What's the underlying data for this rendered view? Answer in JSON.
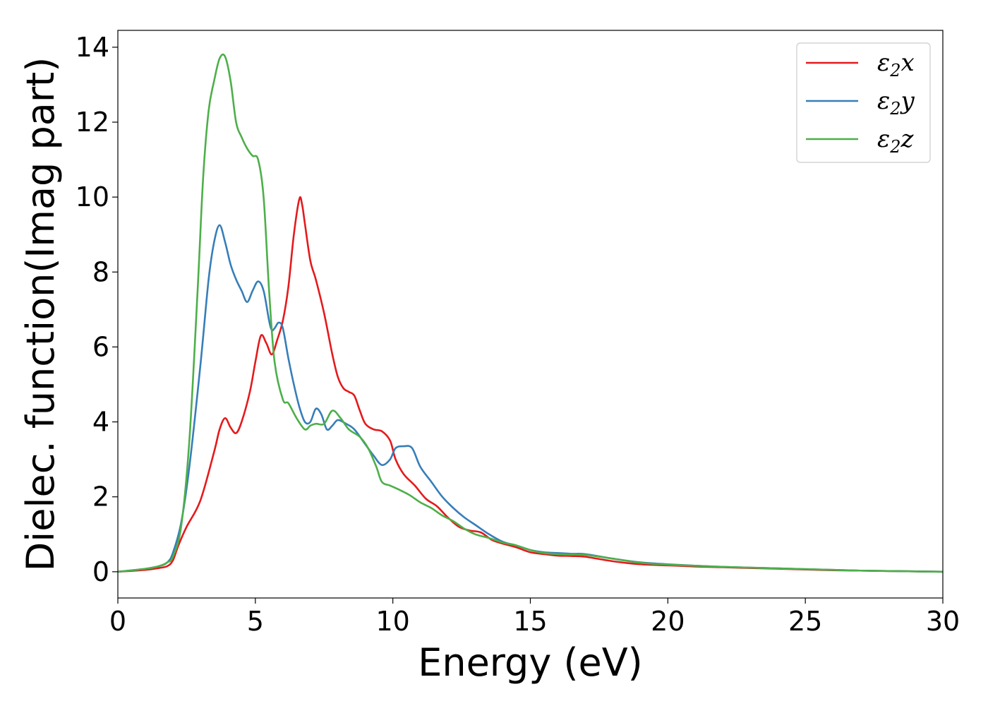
{
  "chart_data": {
    "type": "line",
    "xlabel": "Energy (eV)",
    "ylabel": "Dielec. function(Imag part)",
    "xlim": [
      0,
      30
    ],
    "ylim": [
      -0.7,
      14.45
    ],
    "xticks": [
      "0",
      "5",
      "10",
      "15",
      "20",
      "25",
      "30"
    ],
    "yticks": [
      "0",
      "2",
      "4",
      "6",
      "8",
      "10",
      "12",
      "14"
    ],
    "grid": false,
    "legend_position": "top-right",
    "series": [
      {
        "name": "ε2x",
        "legend": {
          "base": "ε",
          "sub": "2",
          "suffix": "x"
        },
        "color": "#e41a1c",
        "x": [
          0,
          1.0,
          1.5,
          1.8,
          2.0,
          2.2,
          2.5,
          3.0,
          3.5,
          3.7,
          3.9,
          4.1,
          4.3,
          4.5,
          4.8,
          5.0,
          5.2,
          5.4,
          5.6,
          5.8,
          6.0,
          6.2,
          6.4,
          6.6,
          6.7,
          6.8,
          7.0,
          7.2,
          7.5,
          7.8,
          8.0,
          8.2,
          8.4,
          8.6,
          8.8,
          9.0,
          9.3,
          9.6,
          9.9,
          10.1,
          10.4,
          10.8,
          11.2,
          11.6,
          12.0,
          12.4,
          12.8,
          13.2,
          13.6,
          14.0,
          14.5,
          15.0,
          15.5,
          16.0,
          16.5,
          17.0,
          18.0,
          19.0,
          20.0,
          21.0,
          22.0,
          23.0,
          24.0,
          25.0,
          26.0,
          27.0,
          28.0,
          29.0,
          30.0
        ],
        "y": [
          0,
          0.05,
          0.1,
          0.15,
          0.3,
          0.7,
          1.2,
          1.9,
          3.2,
          3.8,
          4.1,
          3.85,
          3.7,
          4.0,
          4.8,
          5.6,
          6.3,
          6.1,
          5.8,
          6.2,
          6.7,
          7.6,
          9.0,
          9.95,
          9.8,
          9.3,
          8.3,
          7.8,
          6.9,
          5.8,
          5.2,
          4.9,
          4.8,
          4.7,
          4.3,
          3.95,
          3.8,
          3.75,
          3.5,
          3.0,
          2.6,
          2.3,
          1.95,
          1.75,
          1.45,
          1.2,
          1.1,
          1.05,
          0.85,
          0.75,
          0.65,
          0.52,
          0.47,
          0.43,
          0.42,
          0.4,
          0.28,
          0.2,
          0.17,
          0.14,
          0.12,
          0.1,
          0.08,
          0.06,
          0.04,
          0.03,
          0.02,
          0.01,
          0.0
        ]
      },
      {
        "name": "ε2y",
        "legend": {
          "base": "ε",
          "sub": "2",
          "suffix": "y"
        },
        "color": "#377eb8",
        "x": [
          0,
          1.0,
          1.5,
          1.8,
          2.0,
          2.3,
          2.6,
          3.0,
          3.3,
          3.5,
          3.7,
          3.9,
          4.1,
          4.3,
          4.5,
          4.7,
          4.9,
          5.1,
          5.3,
          5.5,
          5.6,
          5.7,
          5.85,
          6.0,
          6.2,
          6.4,
          6.6,
          6.8,
          7.0,
          7.2,
          7.4,
          7.6,
          7.8,
          8.0,
          8.3,
          8.6,
          9.0,
          9.3,
          9.6,
          9.9,
          10.1,
          10.4,
          10.7,
          11.0,
          11.4,
          11.8,
          12.2,
          12.6,
          13.0,
          13.5,
          14.0,
          14.5,
          15.0,
          15.5,
          16.0,
          16.5,
          17.0,
          18.0,
          19.0,
          20.0,
          21.0,
          22.0,
          23.0,
          24.0,
          25.0,
          26.0,
          27.0,
          28.0,
          29.0,
          30.0
        ],
        "y": [
          0,
          0.08,
          0.15,
          0.25,
          0.5,
          1.3,
          2.8,
          5.5,
          7.8,
          8.8,
          9.25,
          8.8,
          8.2,
          7.8,
          7.5,
          7.2,
          7.5,
          7.75,
          7.5,
          6.7,
          6.45,
          6.5,
          6.65,
          6.5,
          5.7,
          5.0,
          4.4,
          4.0,
          4.0,
          4.35,
          4.2,
          3.8,
          3.9,
          4.05,
          3.95,
          3.8,
          3.4,
          3.1,
          2.85,
          3.0,
          3.3,
          3.35,
          3.3,
          2.8,
          2.4,
          2.0,
          1.7,
          1.45,
          1.25,
          1.0,
          0.8,
          0.7,
          0.58,
          0.52,
          0.5,
          0.48,
          0.47,
          0.35,
          0.25,
          0.2,
          0.16,
          0.13,
          0.11,
          0.09,
          0.07,
          0.05,
          0.03,
          0.02,
          0.01,
          0.0
        ]
      },
      {
        "name": "ε2z",
        "legend": {
          "base": "ε",
          "sub": "2",
          "suffix": "z"
        },
        "color": "#4daf4a",
        "x": [
          0,
          1.0,
          1.5,
          1.8,
          2.0,
          2.3,
          2.6,
          2.9,
          3.1,
          3.3,
          3.5,
          3.7,
          3.9,
          4.1,
          4.3,
          4.5,
          4.7,
          4.9,
          5.1,
          5.3,
          5.5,
          5.7,
          6.0,
          6.2,
          6.5,
          6.8,
          7.0,
          7.2,
          7.5,
          7.8,
          8.1,
          8.4,
          8.8,
          9.1,
          9.4,
          9.6,
          9.9,
          10.2,
          10.6,
          11.0,
          11.4,
          11.8,
          12.2,
          12.6,
          13.0,
          13.5,
          14.0,
          14.5,
          15.0,
          15.5,
          16.0,
          16.5,
          17.0,
          18.0,
          19.0,
          20.0,
          21.0,
          22.0,
          23.0,
          24.0,
          25.0,
          26.0,
          27.0,
          28.0,
          29.0,
          30.0
        ],
        "y": [
          0,
          0.08,
          0.15,
          0.25,
          0.4,
          1.2,
          3.5,
          7.5,
          10.5,
          12.3,
          13.1,
          13.7,
          13.75,
          13.1,
          12.0,
          11.6,
          11.3,
          11.1,
          11.0,
          10.0,
          7.5,
          5.6,
          4.6,
          4.5,
          4.1,
          3.8,
          3.9,
          3.95,
          3.95,
          4.3,
          4.1,
          3.8,
          3.6,
          3.3,
          2.8,
          2.4,
          2.3,
          2.2,
          2.05,
          1.85,
          1.7,
          1.5,
          1.35,
          1.15,
          1.0,
          0.9,
          0.78,
          0.7,
          0.58,
          0.5,
          0.47,
          0.46,
          0.45,
          0.35,
          0.24,
          0.19,
          0.16,
          0.13,
          0.11,
          0.09,
          0.07,
          0.05,
          0.03,
          0.02,
          0.01,
          0.0
        ]
      }
    ]
  }
}
